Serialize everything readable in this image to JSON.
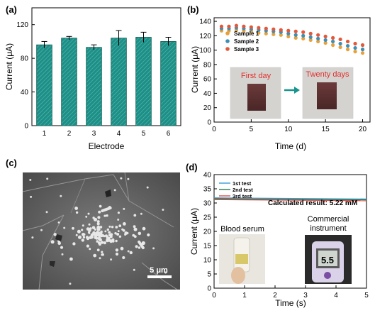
{
  "colors": {
    "bar_fill": "#1d8f86",
    "bar_hatch": "#5cbdb4",
    "sample1": "#e8a13a",
    "sample2": "#3d8fb8",
    "sample3": "#e2583a",
    "test1": "#3a9bd6",
    "test2": "#2a7a4f",
    "test3": "#e24b3b",
    "arrow": "#17948c",
    "photo_text": "#e03030",
    "commercial_text": "#e68a3c"
  },
  "panels": {
    "a": {
      "label": "(a)",
      "xlabel": "Electrode",
      "ylabel": "Current (μA)"
    },
    "b": {
      "label": "(b)",
      "xlabel": "Time (d)",
      "ylabel": "Current (μA)",
      "photo_first": "First  day",
      "photo_twenty": "Twenty  days"
    },
    "c": {
      "label": "(c)",
      "scalebar": "5 μm"
    },
    "d": {
      "label": "(d)",
      "xlabel": "Time (s)",
      "ylabel": "Current (μA)",
      "result_text": "Calculated result:  5.22 mM",
      "blood_serum": "Blood serum",
      "commercial_line1": "Commercial",
      "commercial_line2": "instrument",
      "meter_reading": "5.5"
    }
  },
  "chart_data": [
    {
      "panel": "a",
      "type": "bar",
      "categories": [
        "1",
        "2",
        "3",
        "4",
        "5",
        "6"
      ],
      "values": [
        96,
        104,
        93,
        104,
        105,
        100
      ],
      "errors": [
        4,
        2,
        3,
        9,
        6,
        5
      ],
      "xlabel": "Electrode",
      "ylabel": "Current (μA)",
      "ylim": [
        0,
        140
      ],
      "yticks": [
        0,
        40,
        80,
        120
      ],
      "grid": false
    },
    {
      "panel": "b",
      "type": "scatter",
      "xlabel": "Time (d)",
      "ylabel": "Current (μA)",
      "xlim": [
        0,
        21
      ],
      "ylim": [
        0,
        145
      ],
      "xticks": [
        0,
        5,
        10,
        15,
        20
      ],
      "yticks": [
        0,
        20,
        40,
        60,
        80,
        100,
        120,
        140
      ],
      "legend_position": "upper-left",
      "x": [
        1,
        2,
        3,
        4,
        5,
        6,
        7,
        8,
        9,
        10,
        11,
        12,
        13,
        14,
        15,
        16,
        17,
        18,
        19,
        20
      ],
      "series": [
        {
          "name": "Sample 1",
          "values": [
            127,
            127,
            128,
            127,
            126,
            124,
            123,
            122,
            121,
            119,
            117,
            116,
            114,
            112,
            110,
            107,
            104,
            101,
            98,
            96
          ]
        },
        {
          "name": "Sample 2",
          "values": [
            130,
            130,
            131,
            130,
            129,
            128,
            127,
            126,
            125,
            123,
            121,
            120,
            118,
            116,
            114,
            112,
            109,
            106,
            103,
            101
          ]
        },
        {
          "name": "Sample 3",
          "values": [
            133,
            133,
            134,
            133,
            132,
            131,
            130,
            129,
            128,
            127,
            126,
            125,
            123,
            121,
            119,
            117,
            115,
            112,
            109,
            107
          ]
        }
      ]
    },
    {
      "panel": "d",
      "type": "line",
      "xlabel": "Time (s)",
      "ylabel": "Current (μA)",
      "xlim": [
        0,
        5
      ],
      "ylim": [
        0,
        40
      ],
      "xticks": [
        0,
        1,
        2,
        3,
        4,
        5
      ],
      "yticks": [
        0,
        5,
        10,
        15,
        20,
        25,
        30,
        35,
        40
      ],
      "legend_position": "upper-left",
      "series": [
        {
          "name": "1st test",
          "x": [
            0,
            5
          ],
          "values": [
            31.8,
            31.4
          ]
        },
        {
          "name": "2nd test",
          "x": [
            0,
            5
          ],
          "values": [
            31.5,
            31.1
          ]
        },
        {
          "name": "3rd test",
          "x": [
            0,
            5
          ],
          "values": [
            31.2,
            30.8
          ]
        }
      ]
    }
  ]
}
